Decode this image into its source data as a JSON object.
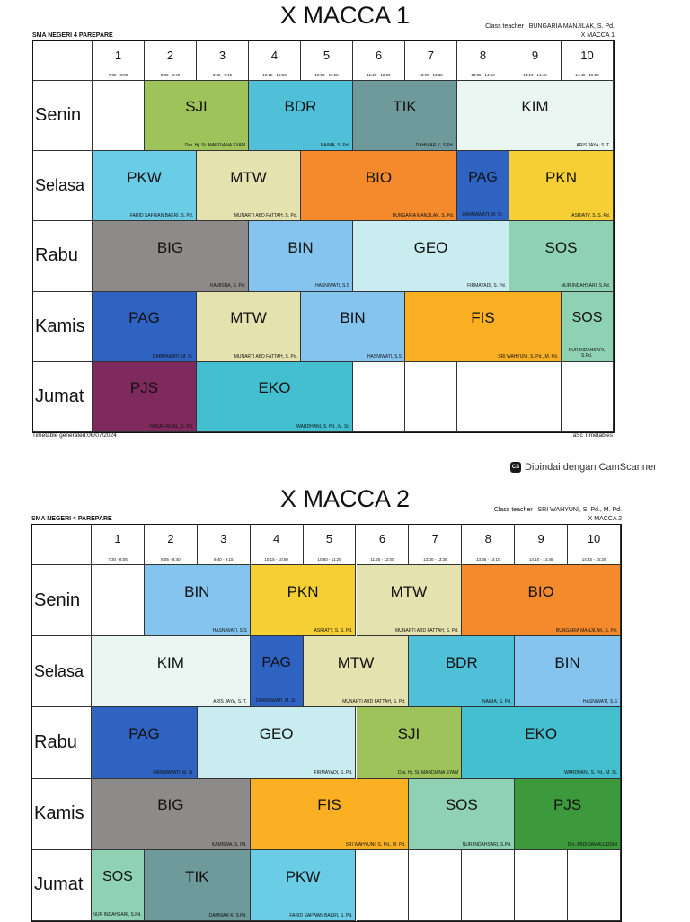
{
  "timetables": [
    {
      "title": "X MACCA 1",
      "school": "SMA NEGERI 4 PAREPARE",
      "class_teacher": "Class teacher : BUNGARIA MANJILAK, S. Pd.",
      "class_code": "X MACCA 1",
      "footer_left": "Timetable generated:06/07/2024",
      "footer_right": "aSc Timetables",
      "periods": [
        {
          "num": "1",
          "time": "7:30 - 8:05"
        },
        {
          "num": "2",
          "time": "8:05 - 8:40"
        },
        {
          "num": "3",
          "time": "8:40 - 9:15"
        },
        {
          "num": "4",
          "time": "10:15 - 10:50"
        },
        {
          "num": "5",
          "time": "10:50 - 11:25"
        },
        {
          "num": "6",
          "time": "11:25 - 12:00"
        },
        {
          "num": "7",
          "time": "13:00 - 13:35"
        },
        {
          "num": "8",
          "time": "13:35 - 14:10"
        },
        {
          "num": "9",
          "time": "14:10 - 14:45"
        },
        {
          "num": "10",
          "time": "14:45 - 15:20"
        }
      ],
      "days": [
        "Senin",
        "Selasa",
        "Rabu",
        "Kamis",
        "Jumat"
      ],
      "lessons": [
        {
          "day": 0,
          "start": 2,
          "span": 2,
          "subject": "SJI",
          "teacher": "Dra. Hj. St. MARDIANA SYAM",
          "color": "#9dc35a"
        },
        {
          "day": 0,
          "start": 4,
          "span": 2,
          "subject": "BDR",
          "teacher": "NAIMA, S. Pd.",
          "color": "#4fc0d8"
        },
        {
          "day": 0,
          "start": 6,
          "span": 2,
          "subject": "TIK",
          "teacher": "DAHNIAR K, S.Pd.",
          "color": "#6f9a9b"
        },
        {
          "day": 0,
          "start": 8,
          "span": 3,
          "subject": "KIM",
          "teacher": "ARIS JAYA, S. T.",
          "color": "#eaf6f2"
        },
        {
          "day": 1,
          "start": 1,
          "span": 2,
          "subject": "PKW",
          "teacher": "FARID SAFWAN BAKRI, S. Pd.",
          "color": "#6bcce6"
        },
        {
          "day": 1,
          "start": 3,
          "span": 2,
          "subject": "MTW",
          "teacher": "MUNARTI ABD FATTAH, S. Pd.",
          "color": "#e4e2ae"
        },
        {
          "day": 1,
          "start": 5,
          "span": 3,
          "subject": "BIO",
          "teacher": "BUNGARIA MANJILAK, S. Pd.",
          "color": "#f58a2c"
        },
        {
          "day": 1,
          "start": 8,
          "span": 1,
          "subject": "PAG",
          "teacher": "DARMAWATI, M. Si.",
          "color": "#2f63c2",
          "narrow": true
        },
        {
          "day": 1,
          "start": 9,
          "span": 2,
          "subject": "PKN",
          "teacher": "ASRIATY, S. S. Pd.",
          "color": "#f5cf33"
        },
        {
          "day": 2,
          "start": 1,
          "span": 3,
          "subject": "BIG",
          "teacher": "KAMISNA, S. Pd.",
          "color": "#8d8b8a"
        },
        {
          "day": 2,
          "start": 4,
          "span": 2,
          "subject": "BIN",
          "teacher": "HASNIWATI, S.S",
          "color": "#84c4ee"
        },
        {
          "day": 2,
          "start": 6,
          "span": 3,
          "subject": "GEO",
          "teacher": "FIRMAYADI, S. Pd.",
          "color": "#c8ecef"
        },
        {
          "day": 2,
          "start": 9,
          "span": 2,
          "subject": "SOS",
          "teacher": "NUR INDAHSARI, S.Pd.",
          "color": "#8fd1b3"
        },
        {
          "day": 3,
          "start": 1,
          "span": 2,
          "subject": "PAG",
          "teacher": "DARMAWATI, M. Si.",
          "color": "#2f63c2"
        },
        {
          "day": 3,
          "start": 3,
          "span": 2,
          "subject": "MTW",
          "teacher": "MUNARTI ABD FATTAH, S. Pd.",
          "color": "#e4e2ae"
        },
        {
          "day": 3,
          "start": 5,
          "span": 2,
          "subject": "BIN",
          "teacher": "HASNIWATI, S.S",
          "color": "#84c4ee"
        },
        {
          "day": 3,
          "start": 7,
          "span": 3,
          "subject": "FIS",
          "teacher": "SRI WAHYUNI, S. Pd., M. Pd.",
          "color": "#fbb024"
        },
        {
          "day": 3,
          "start": 10,
          "span": 1,
          "subject": "SOS",
          "teacher": "NUR INDAHSARI, S.Pd.",
          "color": "#8fd1b3",
          "narrow": true
        },
        {
          "day": 4,
          "start": 1,
          "span": 2,
          "subject": "PJS",
          "teacher": "FAISAL RIZAL, S. Pd.",
          "color": "#7e2a5e"
        },
        {
          "day": 4,
          "start": 3,
          "span": 3,
          "subject": "EKO",
          "teacher": "WARDHANI, S. Pd., M. Si.",
          "color": "#43bfcf"
        }
      ]
    },
    {
      "title": "X MACCA 2",
      "school": "SMA NEGERI 4 PAREPARE",
      "class_teacher": "Class teacher : SRI WAHYUNI, S. Pd., M. Pd.",
      "class_code": "X MACCA 2",
      "periods": [
        {
          "num": "1",
          "time": "7:30 - 8:05"
        },
        {
          "num": "2",
          "time": "8:05 - 8:40"
        },
        {
          "num": "3",
          "time": "8:40 - 9:15"
        },
        {
          "num": "4",
          "time": "10:15 - 10:50"
        },
        {
          "num": "5",
          "time": "10:50 - 11:25"
        },
        {
          "num": "6",
          "time": "11:25 - 12:00"
        },
        {
          "num": "7",
          "time": "13:00 - 13:35"
        },
        {
          "num": "8",
          "time": "13:35 - 14:10"
        },
        {
          "num": "9",
          "time": "14:10 - 14:45"
        },
        {
          "num": "10",
          "time": "14:45 - 15:20"
        }
      ],
      "days": [
        "Senin",
        "Selasa",
        "Rabu",
        "Kamis",
        "Jumat"
      ],
      "lessons": [
        {
          "day": 0,
          "start": 2,
          "span": 2,
          "subject": "BIN",
          "teacher": "HASNIWATI, S.S",
          "color": "#84c4ee"
        },
        {
          "day": 0,
          "start": 4,
          "span": 2,
          "subject": "PKN",
          "teacher": "ASRIATY, S. S. Pd.",
          "color": "#f5cf33"
        },
        {
          "day": 0,
          "start": 6,
          "span": 2,
          "subject": "MTW",
          "teacher": "MUNARTI ABD FATTAH, S. Pd.",
          "color": "#e4e2ae"
        },
        {
          "day": 0,
          "start": 8,
          "span": 3,
          "subject": "BIO",
          "teacher": "BUNGARIA MANJILAK, S. Pd.",
          "color": "#f58a2c"
        },
        {
          "day": 1,
          "start": 1,
          "span": 3,
          "subject": "KIM",
          "teacher": "ARIS JAYA, S. T.",
          "color": "#eaf6f2"
        },
        {
          "day": 1,
          "start": 4,
          "span": 1,
          "subject": "PAG",
          "teacher": "DARMAWATI, M. Si.",
          "color": "#2f63c2",
          "narrow": true
        },
        {
          "day": 1,
          "start": 5,
          "span": 2,
          "subject": "MTW",
          "teacher": "MUNARTI ABD FATTAH, S. Pd.",
          "color": "#e4e2ae"
        },
        {
          "day": 1,
          "start": 7,
          "span": 2,
          "subject": "BDR",
          "teacher": "NAIMA, S. Pd.",
          "color": "#4fc0d8"
        },
        {
          "day": 1,
          "start": 9,
          "span": 2,
          "subject": "BIN",
          "teacher": "HASNIWATI, S.S",
          "color": "#84c4ee"
        },
        {
          "day": 2,
          "start": 1,
          "span": 2,
          "subject": "PAG",
          "teacher": "DARMAWATI, M. Si.",
          "color": "#2f63c2"
        },
        {
          "day": 2,
          "start": 3,
          "span": 3,
          "subject": "GEO",
          "teacher": "FIRMAYADI, S. Pd.",
          "color": "#c8ecef"
        },
        {
          "day": 2,
          "start": 6,
          "span": 2,
          "subject": "SJI",
          "teacher": "Dra. Hj. St. MARDIANA SYAM",
          "color": "#9dc35a"
        },
        {
          "day": 2,
          "start": 8,
          "span": 3,
          "subject": "EKO",
          "teacher": "WARDHANI, S. Pd., M. Si.",
          "color": "#43bfcf"
        },
        {
          "day": 3,
          "start": 1,
          "span": 3,
          "subject": "BIG",
          "teacher": "KAMISNA, S. Pd.",
          "color": "#8d8b8a"
        },
        {
          "day": 3,
          "start": 4,
          "span": 3,
          "subject": "FIS",
          "teacher": "SRI WAHYUNI, S. Pd., M. Pd.",
          "color": "#fbb024"
        },
        {
          "day": 3,
          "start": 7,
          "span": 2,
          "subject": "SOS",
          "teacher": "NUR INDAHSARI, S.Pd.",
          "color": "#8fd1b3"
        },
        {
          "day": 3,
          "start": 9,
          "span": 2,
          "subject": "PJS",
          "teacher": "Drs. ABDI JAMALUDDIN",
          "color": "#3d9a3c"
        },
        {
          "day": 4,
          "start": 1,
          "span": 1,
          "subject": "SOS",
          "teacher": "NUR INDAHSARI, S.Pd.",
          "color": "#8fd1b3",
          "narrow": true
        },
        {
          "day": 4,
          "start": 2,
          "span": 2,
          "subject": "TIK",
          "teacher": "DAHNIAR K, S.Pd.",
          "color": "#6f9a9b"
        },
        {
          "day": 4,
          "start": 4,
          "span": 2,
          "subject": "PKW",
          "teacher": "FARID SAFWAN BAKRI, S. Pd.",
          "color": "#6bcce6"
        }
      ]
    }
  ],
  "scanner_badge": {
    "logo": "CS",
    "text": "Dipindai dengan CamScanner"
  }
}
